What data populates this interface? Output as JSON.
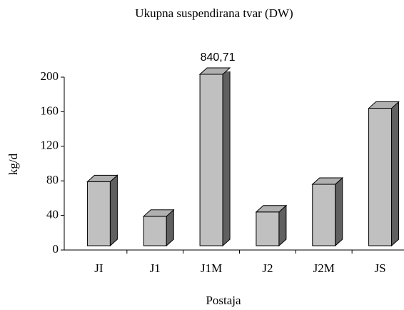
{
  "chart_data": {
    "type": "bar3d",
    "title": "Ukupna suspendirana tvar (DW)",
    "x_label": "Postaja",
    "y_label": "kg/d",
    "categories": [
      "JI",
      "J1",
      "J1M",
      "J2",
      "J2M",
      "JS"
    ],
    "values": [
      79,
      39,
      840.71,
      44,
      76,
      164
    ],
    "value_labels": [
      null,
      null,
      "840,71",
      null,
      null,
      null
    ],
    "color": "#c0c0c0",
    "side_color": "#606060",
    "ylim": [
      0,
      200
    ],
    "yticks": [
      0,
      40,
      80,
      120,
      160,
      200
    ]
  }
}
